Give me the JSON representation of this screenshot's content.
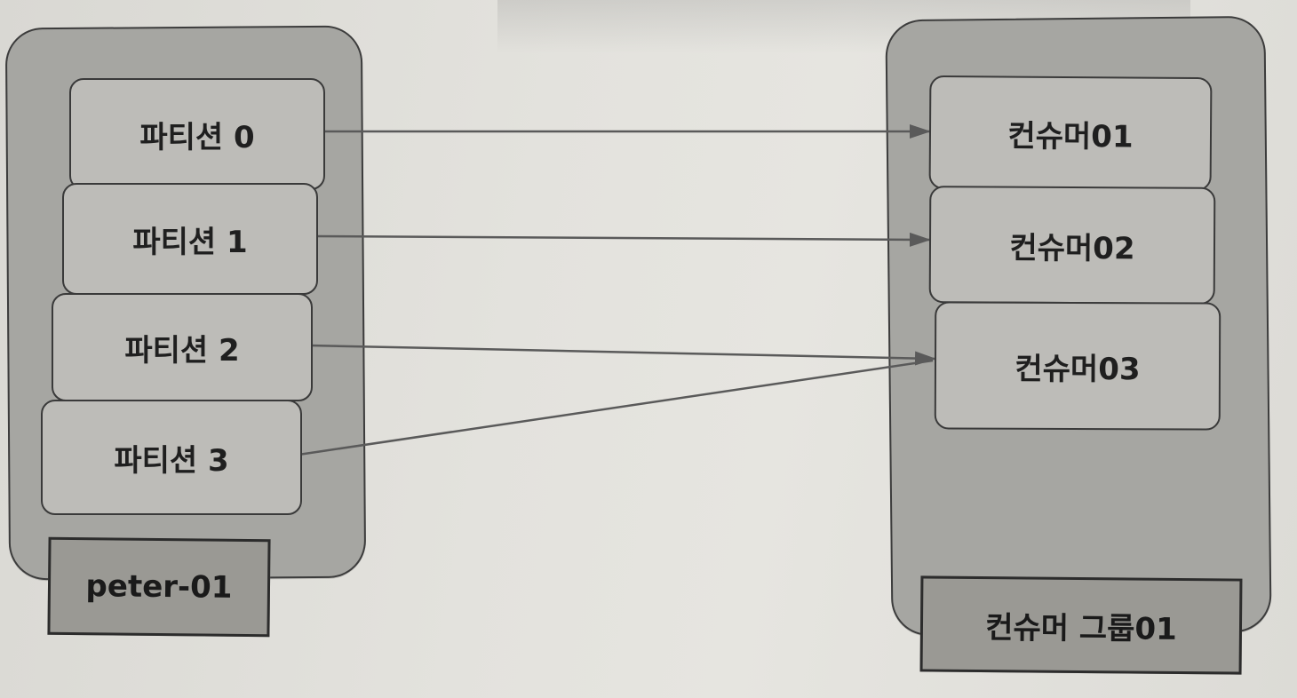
{
  "topic": {
    "name": "peter-01",
    "partitions": [
      "파티션 0",
      "파티션 1",
      "파티션 2",
      "파티션 3"
    ]
  },
  "consumer_group": {
    "name": "컨슈머 그룹01",
    "consumers": [
      "컨슈머01",
      "컨슈머02",
      "컨슈머03"
    ]
  },
  "assignments": [
    {
      "from": "파티션 0",
      "to": "컨슈머01"
    },
    {
      "from": "파티션 1",
      "to": "컨슈머02"
    },
    {
      "from": "파티션 2",
      "to": "컨슈머03"
    },
    {
      "from": "파티션 3",
      "to": "컨슈머03"
    }
  ],
  "colors": {
    "container": "#a6a6a2",
    "box": "#bdbcb8",
    "label": "#9a9994",
    "arrow": "#555555",
    "text": "#1f1f1f"
  }
}
